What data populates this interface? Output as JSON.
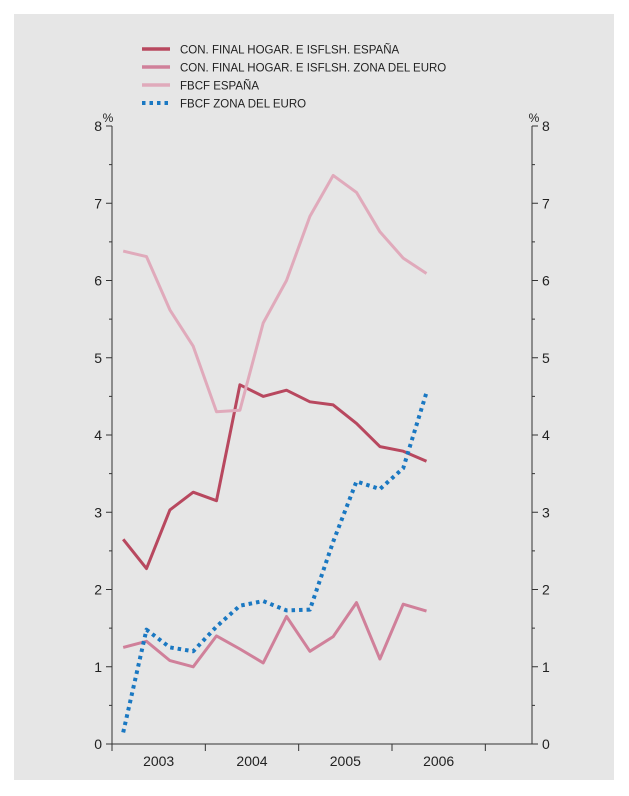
{
  "chart_data": {
    "type": "line",
    "y_unit_left": "%",
    "y_unit_right": "%",
    "ylim": [
      0,
      8
    ],
    "yticks": [
      0,
      1,
      2,
      3,
      4,
      5,
      6,
      7,
      8
    ],
    "xlim": [
      2002.5,
      2007.0
    ],
    "xticks": [
      {
        "label": "2003",
        "x": 2003.0
      },
      {
        "label": "2004",
        "x": 2004.0
      },
      {
        "label": "2005",
        "x": 2005.0
      },
      {
        "label": "2006",
        "x": 2006.0
      }
    ],
    "year_boundaries": [
      2002.5,
      2003.5,
      2004.5,
      2005.5,
      2006.5
    ],
    "grid": false,
    "legend_position": "top-left",
    "series": [
      {
        "name": "CON. FINAL HOGAR. E ISFLSH. ESPAÑA",
        "color": "#b8485f",
        "style": "solid",
        "points": [
          [
            2002.62,
            2.65
          ],
          [
            2002.87,
            2.27
          ],
          [
            2003.12,
            3.03
          ],
          [
            2003.37,
            3.26
          ],
          [
            2003.62,
            3.15
          ],
          [
            2003.87,
            4.65
          ],
          [
            2004.12,
            4.5
          ],
          [
            2004.37,
            4.58
          ],
          [
            2004.62,
            4.43
          ],
          [
            2004.87,
            4.39
          ],
          [
            2005.12,
            4.15
          ],
          [
            2005.37,
            3.85
          ],
          [
            2005.62,
            3.79
          ],
          [
            2005.87,
            3.66
          ]
        ]
      },
      {
        "name": "CON. FINAL HOGAR. E ISFLSH. ZONA DEL EURO",
        "color": "#d0809a",
        "style": "solid",
        "points": [
          [
            2002.62,
            1.25
          ],
          [
            2002.87,
            1.33
          ],
          [
            2003.12,
            1.08
          ],
          [
            2003.37,
            1.0
          ],
          [
            2003.62,
            1.4
          ],
          [
            2003.87,
            1.23
          ],
          [
            2004.12,
            1.05
          ],
          [
            2004.37,
            1.65
          ],
          [
            2004.62,
            1.2
          ],
          [
            2004.87,
            1.39
          ],
          [
            2005.12,
            1.83
          ],
          [
            2005.37,
            1.1
          ],
          [
            2005.62,
            1.81
          ],
          [
            2005.87,
            1.72
          ]
        ]
      },
      {
        "name": "FBCF ESPAÑA",
        "color": "#e0aabb",
        "style": "solid",
        "points": [
          [
            2002.62,
            6.38
          ],
          [
            2002.87,
            6.31
          ],
          [
            2003.12,
            5.62
          ],
          [
            2003.37,
            5.15
          ],
          [
            2003.62,
            4.3
          ],
          [
            2003.87,
            4.32
          ],
          [
            2004.12,
            5.45
          ],
          [
            2004.37,
            6.0
          ],
          [
            2004.62,
            6.83
          ],
          [
            2004.87,
            7.36
          ],
          [
            2005.12,
            7.14
          ],
          [
            2005.37,
            6.63
          ],
          [
            2005.62,
            6.29
          ],
          [
            2005.87,
            6.09
          ]
        ]
      },
      {
        "name": "FBCF ZONA DEL EURO",
        "color": "#1a78c2",
        "style": "dotted",
        "points": [
          [
            2002.62,
            0.15
          ],
          [
            2002.87,
            1.48
          ],
          [
            2003.12,
            1.25
          ],
          [
            2003.37,
            1.2
          ],
          [
            2003.62,
            1.52
          ],
          [
            2003.87,
            1.79
          ],
          [
            2004.12,
            1.85
          ],
          [
            2004.37,
            1.73
          ],
          [
            2004.62,
            1.74
          ],
          [
            2004.87,
            2.62
          ],
          [
            2005.12,
            3.4
          ],
          [
            2005.37,
            3.3
          ],
          [
            2005.62,
            3.57
          ],
          [
            2005.87,
            4.55
          ]
        ]
      }
    ]
  }
}
